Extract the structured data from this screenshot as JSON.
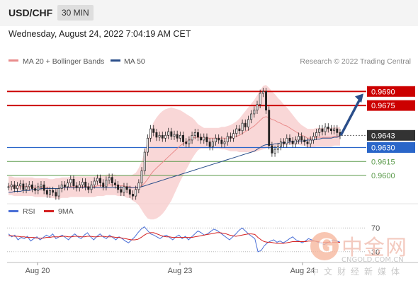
{
  "header": {
    "symbol": "USD/CHF",
    "timeframe": "30 MIN"
  },
  "datetime": "Wednesday, August 24, 2022 7:04:19 AM CET",
  "legend": {
    "bb_label": "MA 20 + Bollinger Bands",
    "ma50_label": "MA 50",
    "credit": "Research © 2022 Trading Central",
    "rsi_label": "RSI",
    "ma9_label": "9MA"
  },
  "colors": {
    "bb_band": "#f7c9c9",
    "ma20": "#e98c8c",
    "ma50": "#2a4e8a",
    "resistance": "#cc0000",
    "pivot": "#2a66c9",
    "support": "#5a9a4a",
    "last_price": "#333333",
    "arrow": "#2a4e8a",
    "rsi": "#4a6fd6",
    "ma9": "#d42020"
  },
  "watermark": {
    "logo": "中金网",
    "url": "CNGOLD.COM.CN",
    "tagline": "中文财经新媒体"
  },
  "chart_data": {
    "type": "candlestick",
    "x_ticks": [
      "Aug 20",
      "Aug 23",
      "Aug 24"
    ],
    "y_range": [
      0.9572,
      0.9716
    ],
    "levels": [
      {
        "label": "0.9690",
        "value": 0.969,
        "kind": "resistance"
      },
      {
        "label": "0.9675",
        "value": 0.9675,
        "kind": "resistance"
      },
      {
        "label": "0.9643",
        "value": 0.9643,
        "kind": "last"
      },
      {
        "label": "0.9630",
        "value": 0.963,
        "kind": "pivot"
      },
      {
        "label": "0.9615",
        "value": 0.9615,
        "kind": "support"
      },
      {
        "label": "0.9600",
        "value": 0.96,
        "kind": "support"
      }
    ],
    "closes": [
      0.9588,
      0.959,
      0.9586,
      0.9589,
      0.9591,
      0.9585,
      0.9588,
      0.959,
      0.9586,
      0.9584,
      0.9588,
      0.959,
      0.9584,
      0.958,
      0.9584,
      0.9582,
      0.9578,
      0.9586,
      0.959,
      0.9588,
      0.9592,
      0.9596,
      0.9589,
      0.9587,
      0.959,
      0.9593,
      0.9588,
      0.9585,
      0.959,
      0.9594,
      0.9597,
      0.9592,
      0.9588,
      0.9595,
      0.9598,
      0.9592,
      0.959,
      0.9585,
      0.9582,
      0.9588,
      0.9585,
      0.958,
      0.9578,
      0.9585,
      0.9592,
      0.9605,
      0.9625,
      0.964,
      0.965,
      0.9646,
      0.9641,
      0.9643,
      0.964,
      0.9643,
      0.9647,
      0.9642,
      0.9644,
      0.964,
      0.9643,
      0.9636,
      0.9634,
      0.9638,
      0.9643,
      0.9646,
      0.9641,
      0.9638,
      0.9641,
      0.9636,
      0.9631,
      0.9636,
      0.964,
      0.9638,
      0.9634,
      0.9636,
      0.9642,
      0.964,
      0.9645,
      0.965,
      0.9648,
      0.9656,
      0.9652,
      0.966,
      0.9666,
      0.967,
      0.9676,
      0.9688,
      0.969,
      0.967,
      0.9632,
      0.9624,
      0.9628,
      0.9631,
      0.9636,
      0.9634,
      0.964,
      0.9637,
      0.9634,
      0.9638,
      0.9642,
      0.9638,
      0.9636,
      0.9634,
      0.9638,
      0.9642,
      0.9646,
      0.965,
      0.9647,
      0.9652,
      0.965,
      0.9648,
      0.965,
      0.9646,
      0.9643
    ],
    "ma20": [
      0.9589,
      0.9589,
      0.9588,
      0.9588,
      0.9588,
      0.9588,
      0.9588,
      0.9588,
      0.9588,
      0.9587,
      0.9587,
      0.9587,
      0.9587,
      0.9587,
      0.9586,
      0.9586,
      0.9586,
      0.9586,
      0.9587,
      0.9587,
      0.9587,
      0.9588,
      0.9588,
      0.9588,
      0.9588,
      0.9588,
      0.9588,
      0.9588,
      0.9588,
      0.9588,
      0.9589,
      0.9589,
      0.9589,
      0.959,
      0.959,
      0.959,
      0.959,
      0.9589,
      0.9589,
      0.9589,
      0.9588,
      0.9588,
      0.9587,
      0.9587,
      0.9588,
      0.9589,
      0.9592,
      0.9596,
      0.9601,
      0.9605,
      0.9608,
      0.9611,
      0.9614,
      0.9617,
      0.962,
      0.9623,
      0.9626,
      0.9629,
      0.9632,
      0.9634,
      0.9636,
      0.9638,
      0.964,
      0.9641,
      0.9641,
      0.9641,
      0.964,
      0.964,
      0.964,
      0.964,
      0.964,
      0.964,
      0.964,
      0.964,
      0.964,
      0.964,
      0.9641,
      0.9642,
      0.9643,
      0.9645,
      0.9647,
      0.9649,
      0.9651,
      0.9653,
      0.9656,
      0.9659,
      0.9662,
      0.9663,
      0.9662,
      0.966,
      0.9659,
      0.9657,
      0.9656,
      0.9654,
      0.9653,
      0.9651,
      0.9649,
      0.9647,
      0.9645,
      0.9643,
      0.9642,
      0.964,
      0.964,
      0.964,
      0.9641,
      0.9641,
      0.9641,
      0.9641,
      0.9641,
      0.9641,
      0.9642,
      0.9642,
      0.9642
    ],
    "ma50": [
      0.9582,
      0.9582,
      0.9583,
      0.9583,
      0.9583,
      0.9584,
      0.9584,
      0.9584,
      0.9585,
      0.9585,
      0.9585,
      0.9586,
      0.9586,
      0.9586,
      0.9586,
      0.9586,
      0.9586,
      0.9586,
      0.9587,
      0.9587,
      0.9587,
      0.9587,
      0.9587,
      0.9587,
      0.9587,
      0.9587,
      0.9587,
      0.9587,
      0.9587,
      0.9587,
      0.9587,
      0.9587,
      0.9587,
      0.9587,
      0.9587,
      0.9587,
      0.9587,
      0.9587,
      0.9587,
      0.9587,
      0.9587,
      0.9587,
      0.9587,
      0.9587,
      0.9587,
      0.9588,
      0.9589,
      0.959,
      0.9591,
      0.9592,
      0.9593,
      0.9594,
      0.9595,
      0.9596,
      0.9597,
      0.9598,
      0.9599,
      0.96,
      0.9601,
      0.9602,
      0.9603,
      0.9604,
      0.9605,
      0.9606,
      0.9607,
      0.9608,
      0.9609,
      0.961,
      0.9611,
      0.9612,
      0.9613,
      0.9614,
      0.9615,
      0.9616,
      0.9617,
      0.9618,
      0.9619,
      0.962,
      0.9621,
      0.9622,
      0.9623,
      0.9624,
      0.9625,
      0.9626,
      0.9628,
      0.963,
      0.9632,
      0.9633,
      0.9633,
      0.9633,
      0.9634,
      0.9634,
      0.9635,
      0.9635,
      0.9635,
      0.9636,
      0.9636,
      0.9636,
      0.9637,
      0.9637,
      0.9637,
      0.9638,
      0.9638,
      0.9638,
      0.9639,
      0.9639,
      0.964,
      0.964,
      0.964,
      0.964,
      0.9641,
      0.9641,
      0.9642
    ],
    "bb_width": [
      0.001,
      0.001,
      0.001,
      0.001,
      0.001,
      0.001,
      0.001,
      0.001,
      0.001,
      0.001,
      0.001,
      0.001,
      0.001,
      0.001,
      0.001,
      0.001,
      0.0011,
      0.0011,
      0.0011,
      0.0011,
      0.0011,
      0.0011,
      0.0011,
      0.0011,
      0.0011,
      0.0011,
      0.0011,
      0.0011,
      0.0011,
      0.0011,
      0.0011,
      0.0011,
      0.0011,
      0.0011,
      0.0011,
      0.0011,
      0.0011,
      0.0011,
      0.0011,
      0.0011,
      0.0012,
      0.0012,
      0.0014,
      0.0016,
      0.002,
      0.0026,
      0.0034,
      0.0042,
      0.0048,
      0.0052,
      0.0054,
      0.0055,
      0.0055,
      0.0054,
      0.0052,
      0.005,
      0.0046,
      0.0042,
      0.0038,
      0.0034,
      0.003,
      0.0026,
      0.0022,
      0.0018,
      0.0014,
      0.0012,
      0.0011,
      0.0011,
      0.0011,
      0.0011,
      0.0011,
      0.0011,
      0.0012,
      0.0012,
      0.0013,
      0.0014,
      0.0015,
      0.0016,
      0.0018,
      0.002,
      0.0022,
      0.0024,
      0.0026,
      0.0028,
      0.003,
      0.0032,
      0.0034,
      0.0034,
      0.0032,
      0.003,
      0.0028,
      0.0026,
      0.0024,
      0.0022,
      0.002,
      0.0018,
      0.0016,
      0.0014,
      0.0012,
      0.0011,
      0.001,
      0.001,
      0.001,
      0.001,
      0.001,
      0.001,
      0.001,
      0.001,
      0.001,
      0.001,
      0.001,
      0.001,
      0.001
    ],
    "rsi": {
      "y_ticks": [
        "70",
        "30"
      ],
      "rsi": [
        60,
        55,
        58,
        50,
        54,
        52,
        56,
        48,
        52,
        55,
        50,
        54,
        58,
        55,
        60,
        52,
        55,
        58,
        54,
        50,
        56,
        60,
        55,
        52,
        58,
        62,
        55,
        50,
        56,
        60,
        55,
        52,
        58,
        54,
        50,
        55,
        52,
        48,
        45,
        50,
        55,
        62,
        68,
        72,
        66,
        60,
        58,
        55,
        52,
        56,
        58,
        54,
        50,
        55,
        58,
        52,
        56,
        50,
        55,
        60,
        65,
        62,
        58,
        60,
        64,
        68,
        66,
        62,
        58,
        54,
        50,
        55,
        60,
        66,
        70,
        65,
        60,
        56,
        52,
        30,
        32,
        40,
        45,
        48,
        50,
        46,
        48,
        45,
        48,
        52,
        55,
        50,
        48,
        45,
        48,
        52,
        50,
        48,
        46,
        44,
        42,
        45,
        48,
        50,
        48,
        46
      ],
      "ma9": [
        57,
        57,
        56,
        56,
        55,
        55,
        54,
        54,
        54,
        53,
        53,
        53,
        54,
        54,
        55,
        55,
        55,
        56,
        56,
        55,
        55,
        56,
        56,
        55,
        55,
        56,
        56,
        55,
        55,
        56,
        56,
        55,
        55,
        55,
        54,
        54,
        53,
        52,
        51,
        50,
        50,
        51,
        54,
        58,
        61,
        62,
        62,
        60,
        58,
        56,
        55,
        55,
        54,
        54,
        54,
        54,
        54,
        54,
        54,
        55,
        56,
        57,
        58,
        59,
        60,
        61,
        62,
        62,
        61,
        60,
        58,
        57,
        56,
        57,
        58,
        59,
        60,
        60,
        59,
        54,
        50,
        47,
        46,
        46,
        45,
        44,
        44,
        44,
        45,
        46,
        47,
        47,
        47,
        47,
        47,
        48,
        48,
        48,
        47,
        46,
        46,
        46,
        46,
        46,
        46,
        46
      ]
    }
  }
}
